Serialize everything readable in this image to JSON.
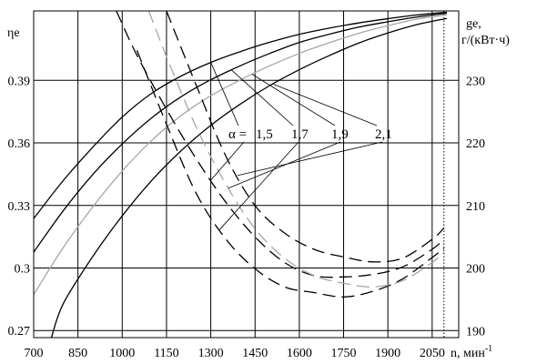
{
  "chart_data": {
    "type": "line",
    "xlabel": "n, мин",
    "xlabel_sup": "-1",
    "ylabel_left": "ηe",
    "ylabel_right_1": "ge,",
    "ylabel_right_2": "г/(кВт·ч)",
    "x_ticks": [
      700,
      850,
      1000,
      1150,
      1300,
      1450,
      1600,
      1750,
      1900,
      2050
    ],
    "y_left_ticks": [
      0.27,
      0.3,
      0.33,
      0.36,
      0.39
    ],
    "y_left_tick_labels": [
      "0.27",
      "0.3",
      "0.33",
      "0.36",
      "0.39"
    ],
    "y_right_ticks": [
      190,
      200,
      210,
      220,
      230
    ],
    "xlim": [
      700,
      2140
    ],
    "ylim_left": [
      0.2666,
      0.4233
    ],
    "ylim_right": [
      188.9,
      241.1
    ],
    "vertical_reference_x": 2090,
    "grid": true,
    "alpha_prefix": "α =",
    "alpha_labels": [
      "1,5",
      "1,7",
      "1,9",
      "2,1"
    ],
    "efficiency_series": [
      {
        "alpha": "1,5",
        "color": "#000000",
        "x": [
          700,
          800,
          900,
          1000,
          1100,
          1200,
          1300,
          1400,
          1500,
          1600,
          1700,
          1800,
          1900,
          2000,
          2100
        ],
        "y": [
          0.3237,
          0.3419,
          0.3579,
          0.3724,
          0.3838,
          0.3921,
          0.3986,
          0.4038,
          0.4083,
          0.4121,
          0.415,
          0.4175,
          0.4196,
          0.4214,
          0.4227
        ]
      },
      {
        "alpha": "1,7",
        "color": "#000000",
        "x": [
          700,
          800,
          900,
          1000,
          1100,
          1200,
          1300,
          1400,
          1500,
          1600,
          1700,
          1800,
          1900,
          2000,
          2100
        ],
        "y": [
          0.3076,
          0.3274,
          0.3448,
          0.3595,
          0.372,
          0.3822,
          0.3903,
          0.397,
          0.4029,
          0.4082,
          0.4121,
          0.4155,
          0.4181,
          0.4204,
          0.4222
        ]
      },
      {
        "alpha": "1,9",
        "color": "#a6a6a6",
        "x": [
          700,
          800,
          900,
          1000,
          1100,
          1200,
          1300,
          1400,
          1500,
          1600,
          1700,
          1800,
          1900,
          2000,
          2100
        ],
        "y": [
          0.2872,
          0.3097,
          0.3293,
          0.3465,
          0.3612,
          0.3732,
          0.3826,
          0.3902,
          0.397,
          0.4029,
          0.408,
          0.4125,
          0.4162,
          0.4194,
          0.4214
        ]
      },
      {
        "alpha": "2,1",
        "color": "#000000",
        "x": [
          760,
          800,
          900,
          1000,
          1100,
          1200,
          1300,
          1400,
          1500,
          1600,
          1700,
          1800,
          1900,
          2000,
          2100
        ],
        "y": [
          0.2666,
          0.2828,
          0.3055,
          0.325,
          0.342,
          0.3563,
          0.3684,
          0.3786,
          0.3875,
          0.3951,
          0.4018,
          0.4078,
          0.4127,
          0.4168,
          0.4197
        ]
      }
    ],
    "consumption_series": [
      {
        "alpha": "1,5",
        "color": "#000000",
        "x": [
          980,
          1050,
          1150,
          1250,
          1350,
          1450,
          1550,
          1650,
          1750,
          1850,
          1950,
          2050,
          2090
        ],
        "y": [
          241.1,
          234.0,
          225.4,
          217.5,
          210.6,
          205.0,
          200.9,
          198.8,
          198.6,
          199.0,
          200.2,
          203.0,
          204.7
        ]
      },
      {
        "alpha": "1,7",
        "color": "#000000",
        "x": [
          1050,
          1150,
          1250,
          1350,
          1450,
          1550,
          1650,
          1750,
          1850,
          1950,
          2050,
          2090
        ],
        "y": [
          234.8,
          223.0,
          212.0,
          204.7,
          199.9,
          197.0,
          196.1,
          195.4,
          196.3,
          198.3,
          201.7,
          203.2
        ]
      },
      {
        "alpha": "1,9",
        "color": "#a6a6a6",
        "x": [
          1090,
          1150,
          1250,
          1350,
          1450,
          1550,
          1650,
          1750,
          1850,
          1950,
          2050,
          2090
        ],
        "y": [
          241.1,
          233.8,
          222.6,
          213.5,
          206.3,
          201.6,
          198.8,
          197.6,
          197.0,
          198.0,
          200.9,
          202.6
        ]
      },
      {
        "alpha": "2,1",
        "color": "#000000",
        "x": [
          1150,
          1250,
          1350,
          1450,
          1550,
          1650,
          1750,
          1850,
          1950,
          2050,
          2090
        ],
        "y": [
          241.1,
          229.3,
          218.0,
          210.0,
          205.6,
          203.0,
          201.8,
          201.0,
          201.6,
          204.6,
          206.4
        ]
      }
    ]
  }
}
